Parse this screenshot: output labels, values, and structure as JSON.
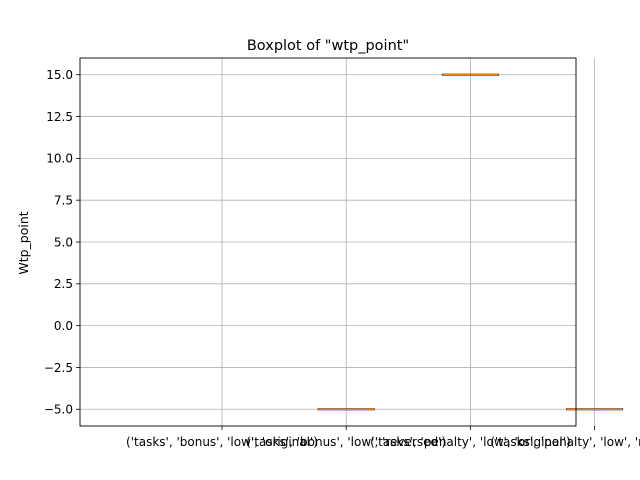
{
  "chart_data": {
    "type": "boxplot",
    "title": "Boxplot of \"wtp_point\"",
    "xlabel": "",
    "ylabel": "Wtp_point",
    "ylim": [
      -6.0,
      16.0
    ],
    "yticks": [
      -5.0,
      -2.5,
      0.0,
      2.5,
      5.0,
      7.5,
      10.0,
      12.5,
      15.0
    ],
    "ytick_labels": [
      "−5.0",
      "−2.5",
      "0.0",
      "2.5",
      "5.0",
      "7.5",
      "10.0",
      "12.5",
      "15.0"
    ],
    "grid": true,
    "categories": [
      "('tasks', 'bonus', 'low', 'original')",
      "('tasks', 'bonus', 'low', 'reversed')",
      "('tasks', 'penalty', 'low', 'original')",
      "('tasks', 'penalty', 'low', 'reversed')"
    ],
    "boxes": [
      {
        "category": "('tasks', 'bonus', 'low', 'original')",
        "min": null,
        "q1": null,
        "median": null,
        "q3": null,
        "max": null
      },
      {
        "category": "('tasks', 'bonus', 'low', 'reversed')",
        "min": -5.0,
        "q1": -5.0,
        "median": -5.0,
        "q3": -5.0,
        "max": -5.0
      },
      {
        "category": "('tasks', 'penalty', 'low', 'original')",
        "min": 15.0,
        "q1": 15.0,
        "median": 15.0,
        "q3": 15.0,
        "max": 15.0
      },
      {
        "category": "('tasks', 'penalty', 'low', 'reversed')",
        "min": -5.0,
        "q1": -5.0,
        "median": -5.0,
        "q3": -5.0,
        "max": -5.0
      }
    ],
    "colors": {
      "median": "#ff7f0e",
      "box": "#000000",
      "grid": "#b0b0b0"
    }
  }
}
